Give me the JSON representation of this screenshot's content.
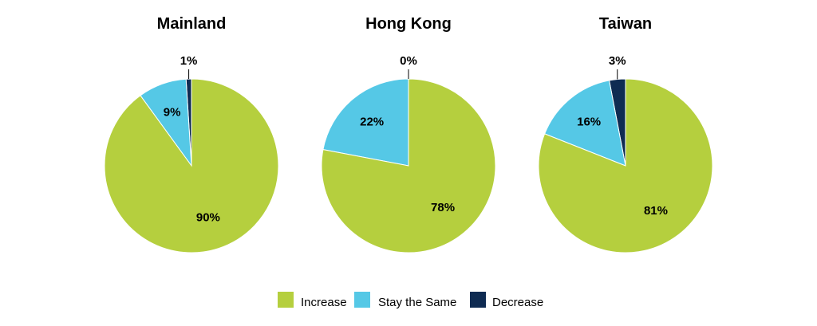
{
  "chart_data": {
    "type": "pie",
    "categories": [
      "Increase",
      "Stay the Same",
      "Decrease"
    ],
    "colors": {
      "Increase": "#b5cf3e",
      "Stay the Same": "#55c8e6",
      "Decrease": "#0f2b52"
    },
    "pies": [
      {
        "title": "Mainland",
        "values": [
          90,
          9,
          1
        ],
        "labels": [
          "90%",
          "9%",
          "1%"
        ]
      },
      {
        "title": "Hong Kong",
        "values": [
          78,
          22,
          0
        ],
        "labels": [
          "78%",
          "22%",
          "0%"
        ]
      },
      {
        "title": "Taiwan",
        "values": [
          81,
          16,
          3
        ],
        "labels": [
          "81%",
          "16%",
          "3%"
        ]
      }
    ],
    "legend": {
      "position": "bottom-center",
      "items": [
        "Increase",
        "Stay the Same",
        "Decrease"
      ]
    }
  }
}
